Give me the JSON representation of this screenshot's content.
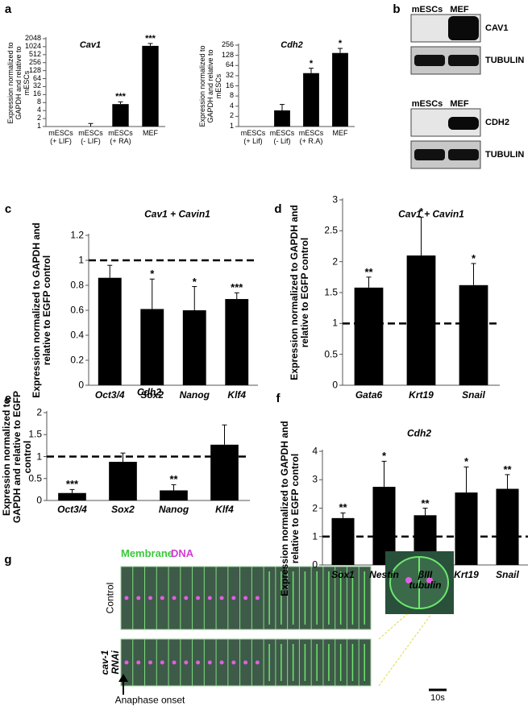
{
  "panel_labels": [
    "a",
    "b",
    "c",
    "d",
    "e",
    "f",
    "g"
  ],
  "chart_data": [
    {
      "type": "bar",
      "title": "Cav1",
      "y_label": "Expression normalized to GAPDH and relative to mESCs",
      "categories": [
        "mESCs (+ LIF)",
        "mESCs (- LIF)",
        "mESCs (+ RA)",
        "MEF"
      ],
      "values": [
        1,
        1,
        7,
        1100
      ],
      "errors": [
        null,
        0.3,
        1.5,
        250
      ],
      "significance": [
        null,
        null,
        "***",
        "***"
      ],
      "color": "#000000",
      "log_scale": true,
      "ylim": [
        1,
        2048
      ],
      "yticks": [
        1,
        2,
        4,
        8,
        16,
        32,
        64,
        128,
        256,
        512,
        1024,
        2048
      ],
      "italic_categories": false,
      "bold_labels": false
    },
    {
      "type": "bar",
      "title": "Cdh2",
      "y_label": "Expression normalized to GAPDH and relative to mESCs",
      "categories": [
        "mESCs (+ Lif)",
        "mESCs (- Lif)",
        "mESCs (+ R.A)",
        "MEF"
      ],
      "values": [
        1,
        3,
        38,
        150
      ],
      "errors": [
        null,
        1.5,
        15,
        55
      ],
      "significance": [
        null,
        null,
        "*",
        "*"
      ],
      "color": "#000000",
      "log_scale": true,
      "ylim": [
        1,
        256
      ],
      "yticks": [
        1,
        2,
        4,
        8,
        16,
        32,
        64,
        128,
        256
      ],
      "italic_categories": false,
      "bold_labels": false
    },
    {
      "type": "bar",
      "title": "Cav1 + Cavin1",
      "y_label": "Expression normalized to GAPDH and relative to EGFP control",
      "categories": [
        "Oct3/4",
        "Sox2",
        "Nanog",
        "Klf4"
      ],
      "values": [
        0.86,
        0.61,
        0.6,
        0.69
      ],
      "errors": [
        0.1,
        0.24,
        0.19,
        0.05
      ],
      "significance": [
        null,
        "*",
        "*",
        "***"
      ],
      "color": "#000000",
      "log_scale": false,
      "ylim": [
        0,
        1.2
      ],
      "yticks": [
        0,
        0.2,
        0.4,
        0.6,
        0.8,
        1,
        1.2
      ],
      "reference_line": 1,
      "italic_categories": true,
      "bold_labels": true
    },
    {
      "type": "bar",
      "title": "Cav1 + Cavin1",
      "y_label": "Expression normalized to GAPDH and relative to EGFP control",
      "categories": [
        "Gata6",
        "Krt19",
        "Snail"
      ],
      "values": [
        1.58,
        2.1,
        1.62
      ],
      "errors": [
        0.17,
        0.62,
        0.35
      ],
      "significance": [
        "**",
        "*",
        "*"
      ],
      "color": "#000000",
      "log_scale": false,
      "ylim": [
        0,
        3
      ],
      "yticks": [
        0,
        0.5,
        1,
        1.5,
        2,
        2.5,
        3
      ],
      "reference_line": 1,
      "italic_categories": true,
      "bold_labels": true
    },
    {
      "type": "bar",
      "title": "Cdh2",
      "y_label": "Expression normalized to GAPDH and relative to EGFP control",
      "categories": [
        "Oct3/4",
        "Sox2",
        "Nanog",
        "Klf4"
      ],
      "values": [
        0.17,
        0.88,
        0.23,
        1.27
      ],
      "errors": [
        0.08,
        0.2,
        0.13,
        0.45
      ],
      "significance": [
        "***",
        null,
        "**",
        null
      ],
      "color": "#000000",
      "log_scale": false,
      "ylim": [
        0,
        2
      ],
      "yticks": [
        0,
        0.5,
        1,
        1.5,
        2
      ],
      "reference_line": 1,
      "italic_categories": true,
      "bold_labels": true
    },
    {
      "type": "bar",
      "title": "Cdh2",
      "y_label": "Expression normalized to GAPDH and relative to EGFP control",
      "categories": [
        "Sox1",
        "Nestin",
        "βIII tubulin",
        "Krt19",
        "Snail"
      ],
      "values": [
        1.65,
        2.75,
        1.75,
        2.55,
        2.68
      ],
      "errors": [
        0.18,
        0.9,
        0.25,
        0.9,
        0.5
      ],
      "significance": [
        "**",
        "*",
        "**",
        "*",
        "**"
      ],
      "color": "#000000",
      "log_scale": false,
      "ylim": [
        0,
        4
      ],
      "yticks": [
        0,
        1,
        2,
        3,
        4
      ],
      "reference_line": 1,
      "italic_categories": true,
      "bold_labels": true
    }
  ],
  "blots": [
    {
      "lanes": [
        "mESCs",
        "MEF"
      ],
      "bands": [
        "CAV1",
        "TUBULIN"
      ]
    },
    {
      "lanes": [
        "mESCs",
        "MEF"
      ],
      "bands": [
        "CDH2",
        "TUBULIN"
      ]
    }
  ],
  "microscopy": {
    "legend": [
      "Membrane",
      "DNA"
    ],
    "rows": [
      "Control",
      "cav-1 RNAi"
    ],
    "arrow_label": "Anaphase onset",
    "scale_bar": "10s"
  }
}
